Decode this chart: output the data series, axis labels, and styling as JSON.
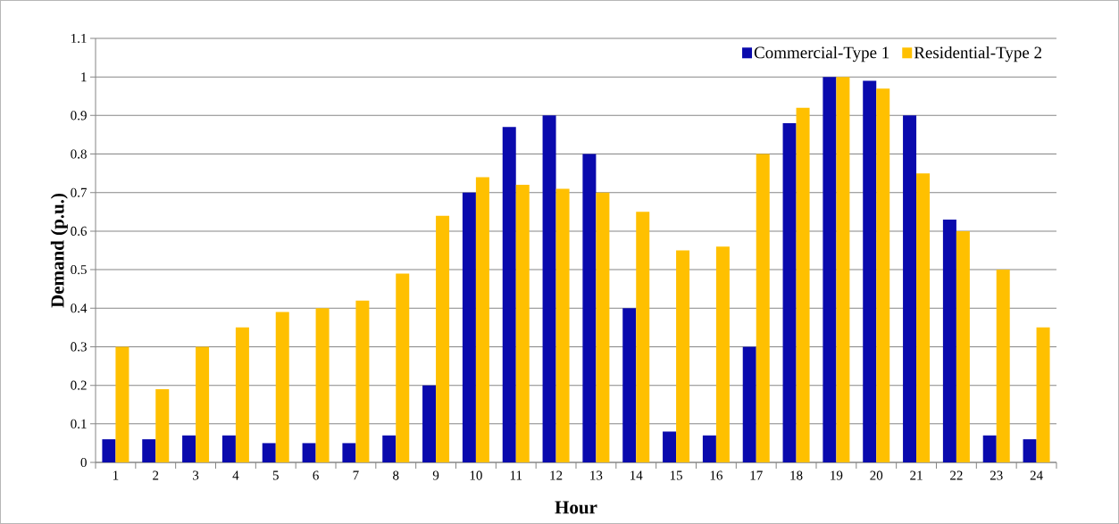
{
  "chart_data": {
    "type": "bar",
    "xlabel": "Hour",
    "ylabel": "Demand (p.u.)",
    "categories": [
      "1",
      "2",
      "3",
      "4",
      "5",
      "6",
      "7",
      "8",
      "9",
      "10",
      "11",
      "12",
      "13",
      "14",
      "15",
      "16",
      "17",
      "18",
      "19",
      "20",
      "21",
      "22",
      "23",
      "24"
    ],
    "series": [
      {
        "name": "Commercial-Type 1",
        "color": "#0a0aad",
        "values": [
          0.06,
          0.06,
          0.07,
          0.07,
          0.05,
          0.05,
          0.05,
          0.07,
          0.2,
          0.7,
          0.87,
          0.9,
          0.8,
          0.4,
          0.08,
          0.07,
          0.3,
          0.88,
          1,
          0.99,
          0.9,
          0.63,
          0.07,
          0.06
        ]
      },
      {
        "name": "Residential-Type 2",
        "color": "#ffc000",
        "values": [
          0.3,
          0.19,
          0.3,
          0.35,
          0.39,
          0.4,
          0.42,
          0.49,
          0.64,
          0.74,
          0.72,
          0.71,
          0.7,
          0.65,
          0.55,
          0.56,
          0.8,
          0.92,
          1,
          0.97,
          0.75,
          0.6,
          0.5,
          0.35
        ]
      }
    ],
    "ylim": [
      0,
      1.1
    ],
    "yticks": [
      0,
      0.1,
      0.2,
      0.3,
      0.4,
      0.5,
      0.6,
      0.7,
      0.8,
      0.9,
      1,
      1.1
    ],
    "grid": "y",
    "legend": "top right"
  }
}
